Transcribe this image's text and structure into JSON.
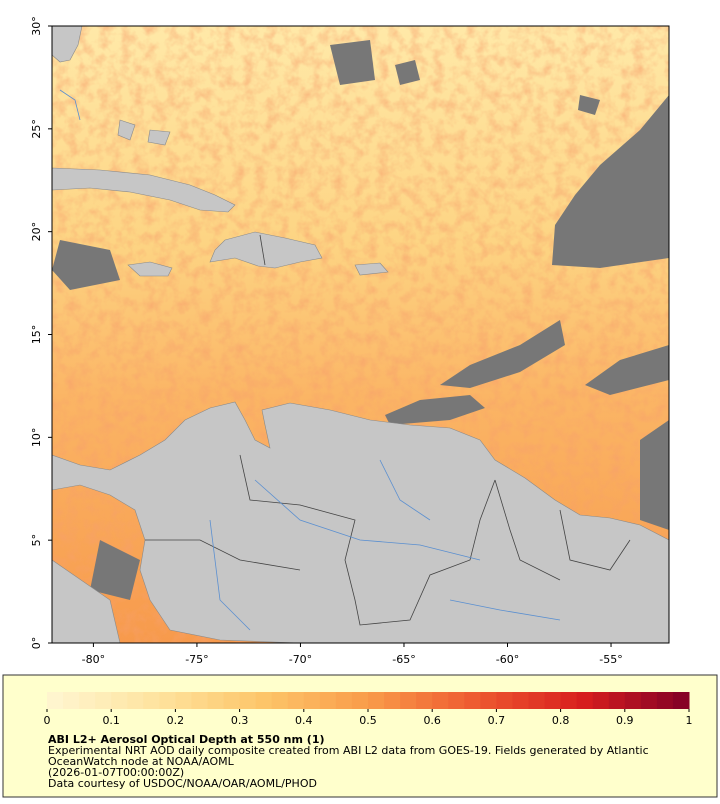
{
  "map": {
    "xlim": [
      -82,
      -52.2
    ],
    "ylim": [
      0,
      30
    ],
    "xticks": [
      {
        "value": -80,
        "label": "-80°"
      },
      {
        "value": -75,
        "label": "-75°"
      },
      {
        "value": -70,
        "label": "-70°"
      },
      {
        "value": -65,
        "label": "-65°"
      },
      {
        "value": -60,
        "label": "-60°"
      },
      {
        "value": -55,
        "label": "-55°"
      }
    ],
    "yticks": [
      {
        "value": 0,
        "label": "0°"
      },
      {
        "value": 5,
        "label": "5°"
      },
      {
        "value": 10,
        "label": "10°"
      },
      {
        "value": 15,
        "label": "15°"
      },
      {
        "value": 20,
        "label": "20°"
      },
      {
        "value": 25,
        "label": "25°"
      },
      {
        "value": 30,
        "label": "30°"
      }
    ]
  },
  "colorbar": {
    "lim": [
      0,
      1
    ],
    "ticks": [
      0,
      0.1,
      0.2,
      0.3,
      0.4,
      0.5,
      0.6,
      0.7,
      0.8,
      0.9,
      1
    ],
    "colors": [
      "#fff6d2",
      "#fee4a0",
      "#fdc66a",
      "#f99c4a",
      "#ee5a30",
      "#d81e1e",
      "#800026"
    ]
  },
  "caption": {
    "title": "ABI L2+ Aerosol Optical Depth at 550 nm (1)",
    "lines": [
      "Experimental NRT AOD daily composite created from ABI L2 data from GOES-19. Fields generated by Atlantic",
      "OceanWatch node at NOAA/AOML",
      "(2026-01-07T00:00:00Z)",
      "Data courtesy of USDOC/NOAA/OAR/AOML/PHOD"
    ]
  }
}
